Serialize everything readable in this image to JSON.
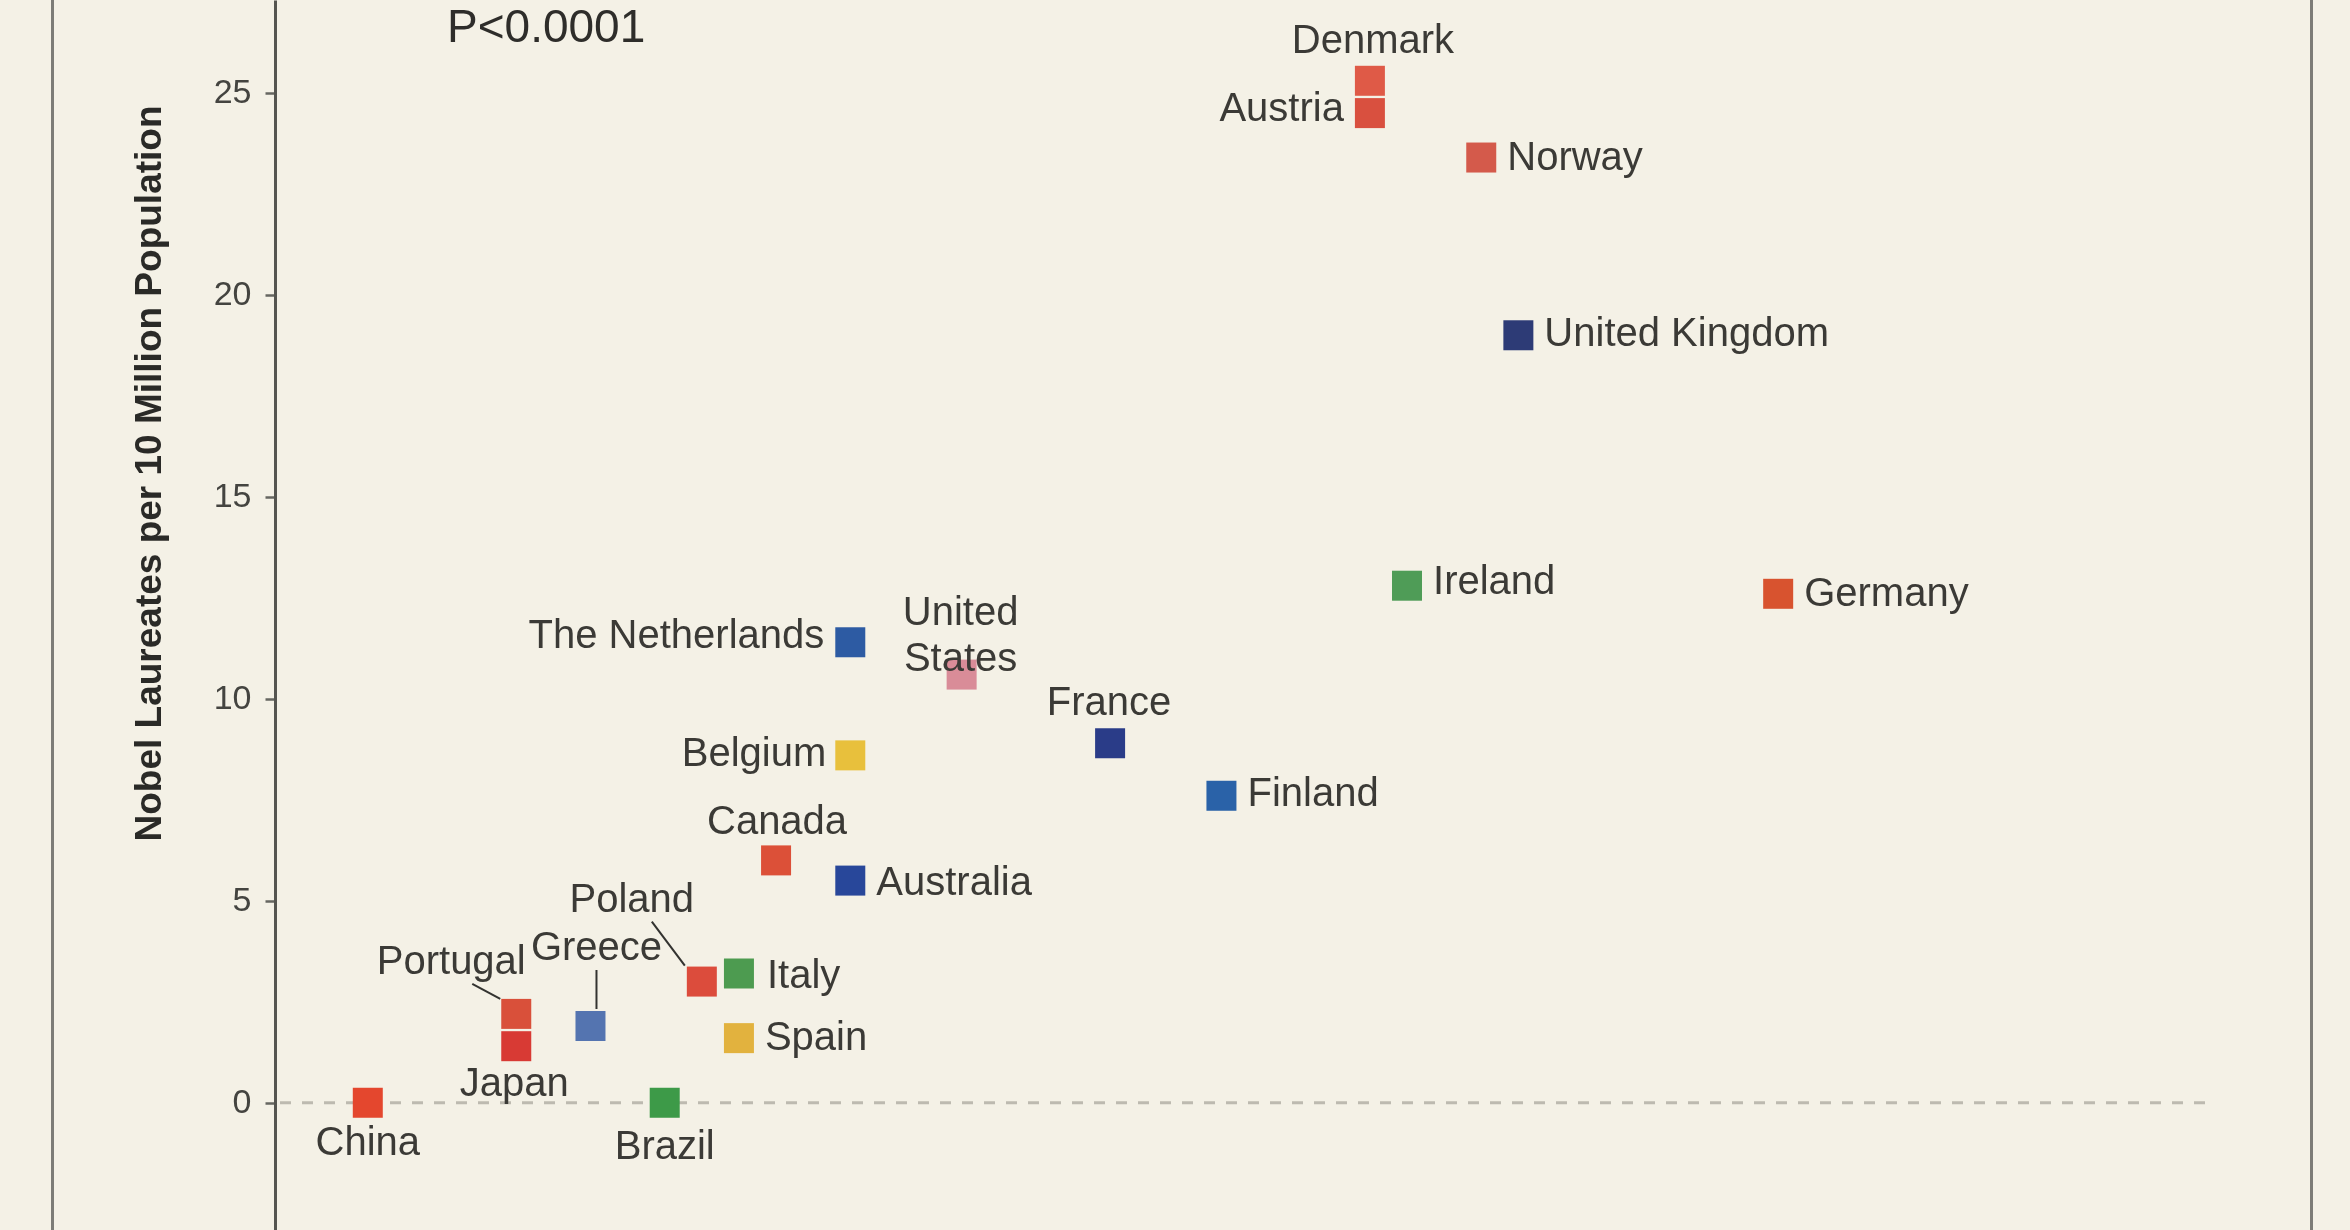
{
  "chart_data": {
    "type": "scatter",
    "ylabel": "Nobel Laureates per 10 Million Population",
    "annotations": [
      "P<0.0001"
    ],
    "categories": [
      null,
      null,
      null,
      null,
      null,
      null,
      null,
      null,
      null,
      null,
      null,
      null,
      null,
      null,
      null,
      null,
      null,
      null,
      null,
      null,
      null,
      null,
      null,
      null,
      null,
      null,
      null,
      null,
      null,
      null,
      null,
      null,
      null,
      null,
      null,
      null,
      null,
      null,
      null,
      null,
      null,
      null,
      null,
      null,
      null,
      null,
      null,
      null,
      null,
      null,
      null,
      null
    ],
    "ylim": [
      -3.15,
      27.3
    ],
    "yticks": [
      0,
      5,
      10,
      15,
      20,
      25
    ],
    "tick_labels": "y",
    "marker": "square",
    "ref_lines": [
      {
        "axis": "y",
        "value": 0,
        "color": "#bdbab0",
        "line_style": "dashed"
      }
    ],
    "series": [
      {
        "name": "China",
        "color": "#e4472e",
        "values": [
          null,
          null,
          0,
          null,
          null,
          null,
          null,
          null,
          null,
          null,
          null,
          null,
          null,
          null,
          null,
          null,
          null,
          null,
          null,
          null,
          null,
          null,
          null,
          null,
          null,
          null,
          null,
          null,
          null,
          null,
          null,
          null,
          null,
          null,
          null,
          null,
          null,
          null,
          null,
          null,
          null,
          null,
          null,
          null,
          null,
          null,
          null,
          null,
          null,
          null,
          null,
          null
        ]
      },
      {
        "name": "Brazil",
        "color": "#3d9a48",
        "values": [
          null,
          null,
          null,
          null,
          null,
          null,
          null,
          null,
          null,
          null,
          0,
          null,
          null,
          null,
          null,
          null,
          null,
          null,
          null,
          null,
          null,
          null,
          null,
          null,
          null,
          null,
          null,
          null,
          null,
          null,
          null,
          null,
          null,
          null,
          null,
          null,
          null,
          null,
          null,
          null,
          null,
          null,
          null,
          null,
          null,
          null,
          null,
          null,
          null,
          null,
          null,
          null
        ]
      },
      {
        "name": "Portugal",
        "color": "#d9503a",
        "values": [
          null,
          null,
          null,
          null,
          null,
          null,
          2.2,
          null,
          null,
          null,
          null,
          null,
          null,
          null,
          null,
          null,
          null,
          null,
          null,
          null,
          null,
          null,
          null,
          null,
          null,
          null,
          null,
          null,
          null,
          null,
          null,
          null,
          null,
          null,
          null,
          null,
          null,
          null,
          null,
          null,
          null,
          null,
          null,
          null,
          null,
          null,
          null,
          null,
          null,
          null,
          null,
          null
        ]
      },
      {
        "name": "Japan",
        "color": "#d83a34",
        "values": [
          null,
          null,
          null,
          null,
          null,
          null,
          1.4,
          null,
          null,
          null,
          null,
          null,
          null,
          null,
          null,
          null,
          null,
          null,
          null,
          null,
          null,
          null,
          null,
          null,
          null,
          null,
          null,
          null,
          null,
          null,
          null,
          null,
          null,
          null,
          null,
          null,
          null,
          null,
          null,
          null,
          null,
          null,
          null,
          null,
          null,
          null,
          null,
          null,
          null,
          null,
          null,
          null
        ]
      },
      {
        "name": "Greece",
        "color": "#5474b0",
        "values": [
          null,
          null,
          null,
          null,
          null,
          null,
          null,
          null,
          1.9,
          null,
          null,
          null,
          null,
          null,
          null,
          null,
          null,
          null,
          null,
          null,
          null,
          null,
          null,
          null,
          null,
          null,
          null,
          null,
          null,
          null,
          null,
          null,
          null,
          null,
          null,
          null,
          null,
          null,
          null,
          null,
          null,
          null,
          null,
          null,
          null,
          null,
          null,
          null,
          null,
          null,
          null,
          null
        ]
      },
      {
        "name": "Poland",
        "color": "#dc4c3c",
        "values": [
          null,
          null,
          null,
          null,
          null,
          null,
          null,
          null,
          null,
          null,
          null,
          3.0,
          null,
          null,
          null,
          null,
          null,
          null,
          null,
          null,
          null,
          null,
          null,
          null,
          null,
          null,
          null,
          null,
          null,
          null,
          null,
          null,
          null,
          null,
          null,
          null,
          null,
          null,
          null,
          null,
          null,
          null,
          null,
          null,
          null,
          null,
          null,
          null,
          null,
          null,
          null,
          null
        ]
      },
      {
        "name": "Italy",
        "color": "#4d9b50",
        "values": [
          null,
          null,
          null,
          null,
          null,
          null,
          null,
          null,
          null,
          null,
          null,
          null,
          3.2,
          null,
          null,
          null,
          null,
          null,
          null,
          null,
          null,
          null,
          null,
          null,
          null,
          null,
          null,
          null,
          null,
          null,
          null,
          null,
          null,
          null,
          null,
          null,
          null,
          null,
          null,
          null,
          null,
          null,
          null,
          null,
          null,
          null,
          null,
          null,
          null,
          null,
          null,
          null
        ]
      },
      {
        "name": "Spain",
        "color": "#e2b23e",
        "values": [
          null,
          null,
          null,
          null,
          null,
          null,
          null,
          null,
          null,
          null,
          null,
          null,
          1.6,
          null,
          null,
          null,
          null,
          null,
          null,
          null,
          null,
          null,
          null,
          null,
          null,
          null,
          null,
          null,
          null,
          null,
          null,
          null,
          null,
          null,
          null,
          null,
          null,
          null,
          null,
          null,
          null,
          null,
          null,
          null,
          null,
          null,
          null,
          null,
          null,
          null,
          null,
          null
        ]
      },
      {
        "name": "Canada",
        "color": "#dc5038",
        "values": [
          null,
          null,
          null,
          null,
          null,
          null,
          null,
          null,
          null,
          null,
          null,
          null,
          null,
          6.0,
          null,
          null,
          null,
          null,
          null,
          null,
          null,
          null,
          null,
          null,
          null,
          null,
          null,
          null,
          null,
          null,
          null,
          null,
          null,
          null,
          null,
          null,
          null,
          null,
          null,
          null,
          null,
          null,
          null,
          null,
          null,
          null,
          null,
          null,
          null,
          null,
          null,
          null
        ]
      },
      {
        "name": "Australia",
        "color": "#28479a",
        "values": [
          null,
          null,
          null,
          null,
          null,
          null,
          null,
          null,
          null,
          null,
          null,
          null,
          null,
          null,
          null,
          5.5,
          null,
          null,
          null,
          null,
          null,
          null,
          null,
          null,
          null,
          null,
          null,
          null,
          null,
          null,
          null,
          null,
          null,
          null,
          null,
          null,
          null,
          null,
          null,
          null,
          null,
          null,
          null,
          null,
          null,
          null,
          null,
          null,
          null,
          null,
          null,
          null
        ]
      },
      {
        "name": "Belgium",
        "color": "#e8c03c",
        "values": [
          null,
          null,
          null,
          null,
          null,
          null,
          null,
          null,
          null,
          null,
          null,
          null,
          null,
          null,
          null,
          8.6,
          null,
          null,
          null,
          null,
          null,
          null,
          null,
          null,
          null,
          null,
          null,
          null,
          null,
          null,
          null,
          null,
          null,
          null,
          null,
          null,
          null,
          null,
          null,
          null,
          null,
          null,
          null,
          null,
          null,
          null,
          null,
          null,
          null,
          null,
          null,
          null
        ]
      },
      {
        "name": "The Netherlands",
        "color": "#2d5ba3",
        "values": [
          null,
          null,
          null,
          null,
          null,
          null,
          null,
          null,
          null,
          null,
          null,
          null,
          null,
          null,
          null,
          11.4,
          null,
          null,
          null,
          null,
          null,
          null,
          null,
          null,
          null,
          null,
          null,
          null,
          null,
          null,
          null,
          null,
          null,
          null,
          null,
          null,
          null,
          null,
          null,
          null,
          null,
          null,
          null,
          null,
          null,
          null,
          null,
          null,
          null,
          null,
          null,
          null
        ]
      },
      {
        "name": "United States",
        "color": "#d98c98",
        "values": [
          null,
          null,
          null,
          null,
          null,
          null,
          null,
          null,
          null,
          null,
          null,
          null,
          null,
          null,
          null,
          null,
          null,
          null,
          10.6,
          null,
          null,
          null,
          null,
          null,
          null,
          null,
          null,
          null,
          null,
          null,
          null,
          null,
          null,
          null,
          null,
          null,
          null,
          null,
          null,
          null,
          null,
          null,
          null,
          null,
          null,
          null,
          null,
          null,
          null,
          null,
          null,
          null
        ]
      },
      {
        "name": "France",
        "color": "#2a3c88",
        "values": [
          null,
          null,
          null,
          null,
          null,
          null,
          null,
          null,
          null,
          null,
          null,
          null,
          null,
          null,
          null,
          null,
          null,
          null,
          null,
          null,
          null,
          null,
          8.9,
          null,
          null,
          null,
          null,
          null,
          null,
          null,
          null,
          null,
          null,
          null,
          null,
          null,
          null,
          null,
          null,
          null,
          null,
          null,
          null,
          null,
          null,
          null,
          null,
          null,
          null,
          null,
          null,
          null
        ]
      },
      {
        "name": "Finland",
        "color": "#2a62a8",
        "values": [
          null,
          null,
          null,
          null,
          null,
          null,
          null,
          null,
          null,
          null,
          null,
          null,
          null,
          null,
          null,
          null,
          null,
          null,
          null,
          null,
          null,
          null,
          null,
          null,
          null,
          7.6,
          null,
          null,
          null,
          null,
          null,
          null,
          null,
          null,
          null,
          null,
          null,
          null,
          null,
          null,
          null,
          null,
          null,
          null,
          null,
          null,
          null,
          null,
          null,
          null,
          null,
          null
        ]
      },
      {
        "name": "Ireland",
        "color": "#4f9c57",
        "values": [
          null,
          null,
          null,
          null,
          null,
          null,
          null,
          null,
          null,
          null,
          null,
          null,
          null,
          null,
          null,
          null,
          null,
          null,
          null,
          null,
          null,
          null,
          null,
          null,
          null,
          null,
          null,
          null,
          null,
          null,
          12.8,
          null,
          null,
          null,
          null,
          null,
          null,
          null,
          null,
          null,
          null,
          null,
          null,
          null,
          null,
          null,
          null,
          null,
          null,
          null,
          null,
          null
        ]
      },
      {
        "name": "Germany",
        "color": "#d8532f",
        "values": [
          null,
          null,
          null,
          null,
          null,
          null,
          null,
          null,
          null,
          null,
          null,
          null,
          null,
          null,
          null,
          null,
          null,
          null,
          null,
          null,
          null,
          null,
          null,
          null,
          null,
          null,
          null,
          null,
          null,
          null,
          null,
          null,
          null,
          null,
          null,
          null,
          null,
          null,
          null,
          null,
          12.6,
          null,
          null,
          null,
          null,
          null,
          null,
          null,
          null,
          null,
          null,
          null
        ]
      },
      {
        "name": "Denmark",
        "color": "#df5a47",
        "values": [
          null,
          null,
          null,
          null,
          null,
          null,
          null,
          null,
          null,
          null,
          null,
          null,
          null,
          null,
          null,
          null,
          null,
          null,
          null,
          null,
          null,
          null,
          null,
          null,
          null,
          null,
          null,
          null,
          null,
          25.3,
          null,
          null,
          null,
          null,
          null,
          null,
          null,
          null,
          null,
          null,
          null,
          null,
          null,
          null,
          null,
          null,
          null,
          null,
          null,
          null,
          null,
          null
        ]
      },
      {
        "name": "Austria",
        "color": "#d9503f",
        "values": [
          null,
          null,
          null,
          null,
          null,
          null,
          null,
          null,
          null,
          null,
          null,
          null,
          null,
          null,
          null,
          null,
          null,
          null,
          null,
          null,
          null,
          null,
          null,
          null,
          null,
          null,
          null,
          null,
          null,
          24.5,
          null,
          null,
          null,
          null,
          null,
          null,
          null,
          null,
          null,
          null,
          null,
          null,
          null,
          null,
          null,
          null,
          null,
          null,
          null,
          null,
          null,
          null
        ]
      },
      {
        "name": "Norway",
        "color": "#d45a4b",
        "values": [
          null,
          null,
          null,
          null,
          null,
          null,
          null,
          null,
          null,
          null,
          null,
          null,
          null,
          null,
          null,
          null,
          null,
          null,
          null,
          null,
          null,
          null,
          null,
          null,
          null,
          null,
          null,
          null,
          null,
          null,
          null,
          null,
          23.4,
          null,
          null,
          null,
          null,
          null,
          null,
          null,
          null,
          null,
          null,
          null,
          null,
          null,
          null,
          null,
          null,
          null,
          null,
          null
        ]
      },
      {
        "name": "United Kingdom",
        "color": "#2d3b76",
        "values": [
          null,
          null,
          null,
          null,
          null,
          null,
          null,
          null,
          null,
          null,
          null,
          null,
          null,
          null,
          null,
          null,
          null,
          null,
          null,
          null,
          null,
          null,
          null,
          null,
          null,
          null,
          null,
          null,
          null,
          null,
          null,
          null,
          null,
          19.0,
          null,
          null,
          null,
          null,
          null,
          null,
          null,
          null,
          null,
          null,
          null,
          null,
          null,
          null,
          null,
          null,
          null,
          null
        ]
      }
    ]
  }
}
